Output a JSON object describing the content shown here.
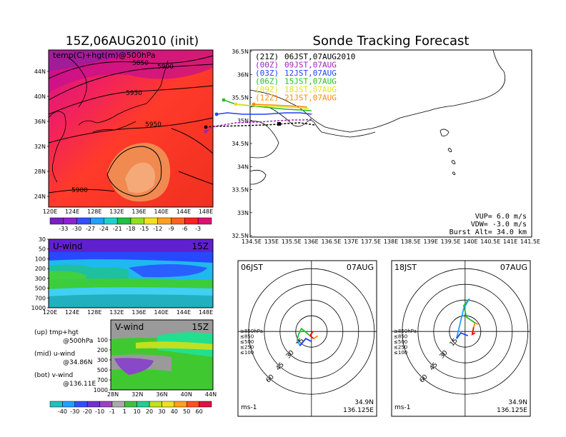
{
  "colors": {
    "run_21Z": "#000000",
    "run_00Z": "#a020c0",
    "run_03Z": "#2040ff",
    "run_06Z": "#20c020",
    "run_09Z": "#e0e020",
    "run_12Z": "#ff8c00"
  },
  "left_map": {
    "title": "15Z,06AUG2010 (init)",
    "label": "temp(C)+hgt(m)@500hPa",
    "yticks": [
      "44N",
      "40N",
      "36N",
      "32N",
      "28N",
      "24N"
    ],
    "xticks": [
      "120E",
      "124E",
      "128E",
      "132E",
      "136E",
      "140E",
      "144E",
      "148E"
    ],
    "contour_labels": [
      "5850",
      "5900",
      "5950",
      "5950",
      "5900"
    ],
    "colorbar_labels": [
      "-33",
      "-30",
      "-27",
      "-24",
      "-21",
      "-18",
      "-15",
      "-12",
      "-9",
      "-6",
      "-3"
    ]
  },
  "uwind": {
    "label": "U-wind",
    "time": "15Z",
    "yticks": [
      "30",
      "50",
      "100",
      "200",
      "300",
      "500",
      "700",
      "1000"
    ],
    "xticks": [
      "120E",
      "124E",
      "128E",
      "132E",
      "136E",
      "140E",
      "144E",
      "148E"
    ]
  },
  "vwind": {
    "label": "V-wind",
    "time": "15Z",
    "yticks": [
      "100",
      "200",
      "300",
      "500",
      "700",
      "1000"
    ],
    "xticks": [
      "28N",
      "32N",
      "36N",
      "40N",
      "44N"
    ],
    "colorbar_labels": [
      "-40",
      "-30",
      "-20",
      "-10",
      "-1",
      "1",
      "10",
      "20",
      "30",
      "40",
      "50",
      "60"
    ]
  },
  "notes": {
    "up": "(up) tmp+hgt",
    "up2": "@500hPa",
    "mid": "(mid) u-wind",
    "mid2": "@34.86N",
    "bot": "(bot) v-wind",
    "bot2": "@136.11E"
  },
  "track": {
    "title": "Sonde Tracking Forecast",
    "yticks": [
      "36.5N",
      "36N",
      "35.5N",
      "35N",
      "34.5N",
      "34N",
      "33.5N",
      "33N",
      "32.5N"
    ],
    "xticks": [
      "134.5E",
      "135E",
      "135.5E",
      "136E",
      "136.5E",
      "137E",
      "137.5E",
      "138E",
      "138.5E",
      "139E",
      "139.5E",
      "140E",
      "140.5E",
      "141E",
      "141.5E"
    ],
    "legend": [
      {
        "run": "(21Z)",
        "time": "06JST,07AUG2010"
      },
      {
        "run": "(00Z)",
        "time": "09JST,07AUG"
      },
      {
        "run": "(03Z)",
        "time": "12JST,07AUG"
      },
      {
        "run": "(06Z)",
        "time": "15JST,07AUG"
      },
      {
        "run": "(09Z)",
        "time": "18JST,07AUG"
      },
      {
        "run": "(12Z)",
        "time": "21JST,07AUG"
      }
    ],
    "vup": "VUP= 6.0 m/s",
    "vdw": "VDW= -3.0 m/s",
    "burst": "Burst Alt= 34.0 km"
  },
  "polar_left": {
    "time": "06JST",
    "date": "07AUG",
    "rings": [
      "15",
      "30",
      "45",
      "60"
    ],
    "levels": [
      "≥850hPa",
      "≤850",
      "≤500",
      "≤250",
      "≤100"
    ],
    "unit": "ms-1",
    "lat": "34.9N",
    "lon": "136.125E"
  },
  "polar_right": {
    "time": "18JST",
    "date": "07AUG",
    "rings": [
      "15",
      "30",
      "45",
      "60"
    ],
    "levels": [
      "≥850hPa",
      "≤850",
      "≤500",
      "≤250",
      "≤100"
    ],
    "unit": "ms-1",
    "lat": "34.9N",
    "lon": "136.125E"
  }
}
